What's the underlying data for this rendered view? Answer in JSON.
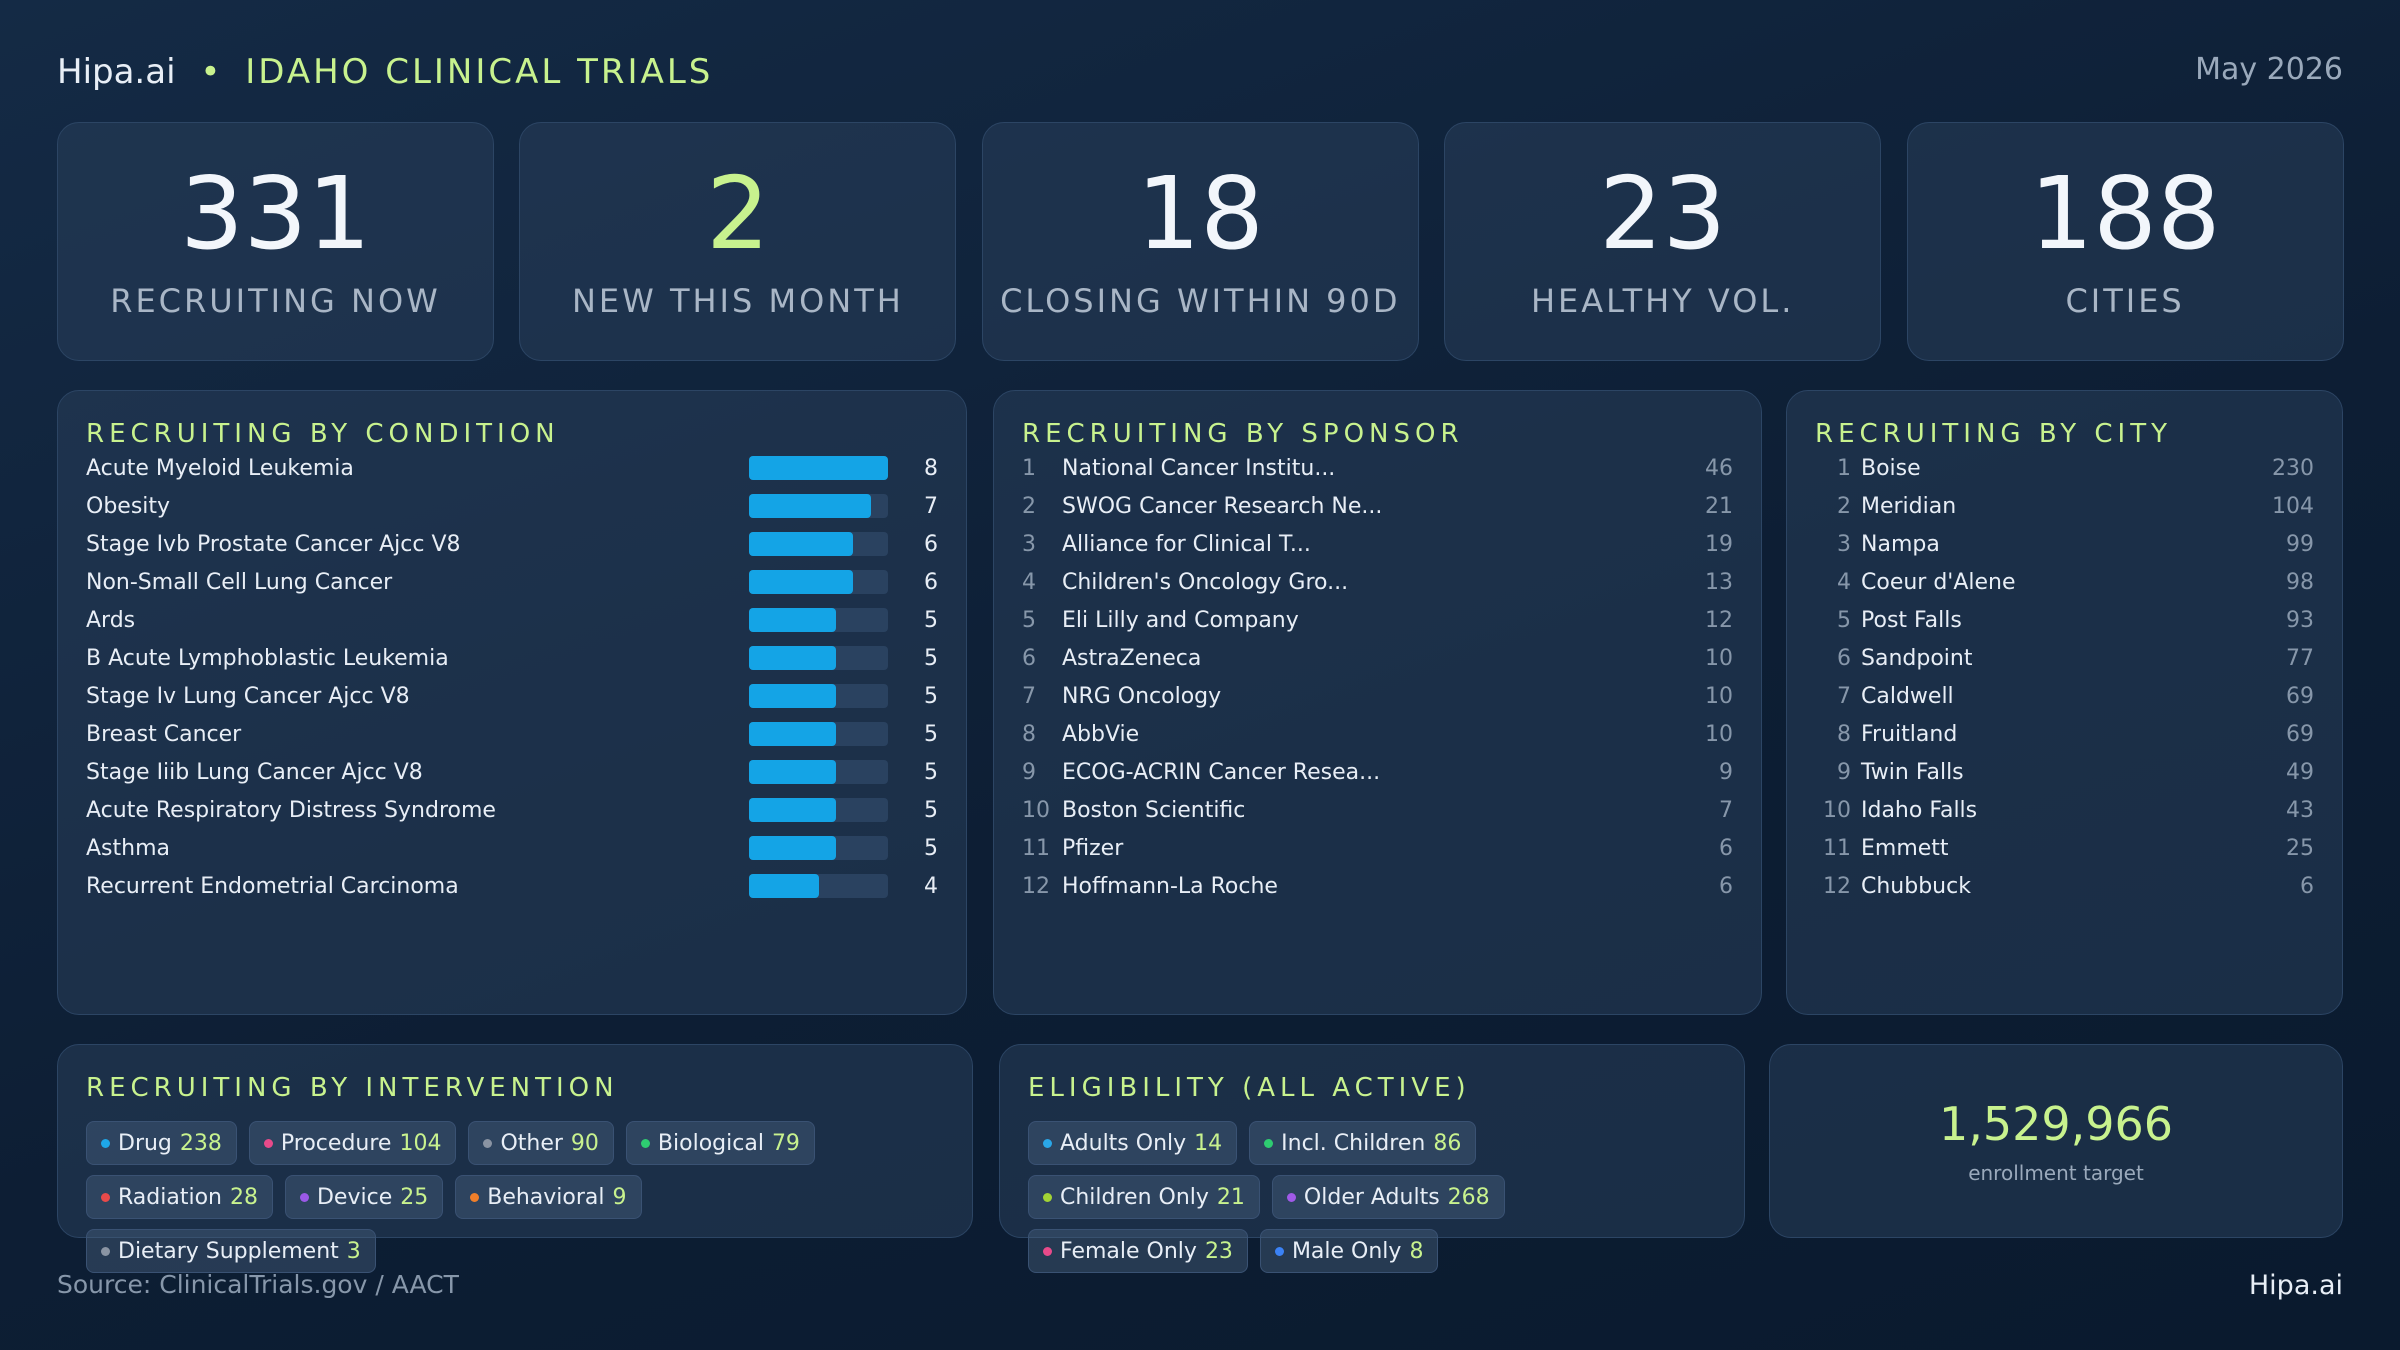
{
  "header": {
    "brand": "Hipa.ai",
    "bullet": "•",
    "title": "IDAHO CLINICAL TRIALS",
    "date": "May 2026"
  },
  "kpis": [
    {
      "value": "331",
      "label": "RECRUITING NOW"
    },
    {
      "value": "2",
      "label": "NEW THIS MONTH",
      "accent": true
    },
    {
      "value": "18",
      "label": "CLOSING WITHIN 90D"
    },
    {
      "value": "23",
      "label": "HEALTHY VOL."
    },
    {
      "value": "188",
      "label": "CITIES"
    }
  ],
  "conditions": {
    "title": "RECRUITING BY CONDITION",
    "bar_color": "#14a4e6",
    "rows": [
      {
        "name": "Acute Myeloid Leukemia",
        "value": 8
      },
      {
        "name": "Obesity",
        "value": 7
      },
      {
        "name": "Stage Ivb Prostate Cancer Ajcc V8",
        "value": 6
      },
      {
        "name": "Non-Small Cell Lung Cancer",
        "value": 6
      },
      {
        "name": "Ards",
        "value": 5
      },
      {
        "name": "B Acute Lymphoblastic Leukemia",
        "value": 5
      },
      {
        "name": "Stage Iv Lung Cancer Ajcc V8",
        "value": 5
      },
      {
        "name": "Breast Cancer",
        "value": 5
      },
      {
        "name": "Stage Iiib Lung Cancer Ajcc V8",
        "value": 5
      },
      {
        "name": "Acute Respiratory Distress Syndrome",
        "value": 5
      },
      {
        "name": "Asthma",
        "value": 5
      },
      {
        "name": "Recurrent Endometrial Carcinoma",
        "value": 4
      }
    ]
  },
  "sponsors": {
    "title": "RECRUITING BY SPONSOR",
    "rows": [
      {
        "rank": 1,
        "name": "National Cancer Institu...",
        "value": 46
      },
      {
        "rank": 2,
        "name": "SWOG Cancer Research Ne...",
        "value": 21
      },
      {
        "rank": 3,
        "name": "Alliance for Clinical T...",
        "value": 19
      },
      {
        "rank": 4,
        "name": "Children's Oncology Gro...",
        "value": 13
      },
      {
        "rank": 5,
        "name": "Eli Lilly and Company",
        "value": 12
      },
      {
        "rank": 6,
        "name": "AstraZeneca",
        "value": 10
      },
      {
        "rank": 7,
        "name": "NRG Oncology",
        "value": 10
      },
      {
        "rank": 8,
        "name": "AbbVie",
        "value": 10
      },
      {
        "rank": 9,
        "name": "ECOG-ACRIN Cancer Resea...",
        "value": 9
      },
      {
        "rank": 10,
        "name": "Boston Scientific",
        "value": 7
      },
      {
        "rank": 11,
        "name": "Pfizer",
        "value": 6
      },
      {
        "rank": 12,
        "name": "Hoffmann-La Roche",
        "value": 6
      }
    ]
  },
  "cities": {
    "title": "RECRUITING BY CITY",
    "rows": [
      {
        "rank": 1,
        "name": "Boise",
        "value": 230
      },
      {
        "rank": 2,
        "name": "Meridian",
        "value": 104
      },
      {
        "rank": 3,
        "name": "Nampa",
        "value": 99
      },
      {
        "rank": 4,
        "name": "Coeur d'Alene",
        "value": 98
      },
      {
        "rank": 5,
        "name": "Post Falls",
        "value": 93
      },
      {
        "rank": 6,
        "name": "Sandpoint",
        "value": 77
      },
      {
        "rank": 7,
        "name": "Caldwell",
        "value": 69
      },
      {
        "rank": 8,
        "name": "Fruitland",
        "value": 69
      },
      {
        "rank": 9,
        "name": "Twin Falls",
        "value": 49
      },
      {
        "rank": 10,
        "name": "Idaho Falls",
        "value": 43
      },
      {
        "rank": 11,
        "name": "Emmett",
        "value": 25
      },
      {
        "rank": 12,
        "name": "Chubbuck",
        "value": 6
      }
    ]
  },
  "interventions": {
    "title": "RECRUITING BY INTERVENTION",
    "chips": [
      {
        "name": "Drug",
        "value": 238,
        "color": "#1ea7e8"
      },
      {
        "name": "Procedure",
        "value": 104,
        "color": "#e84a8a"
      },
      {
        "name": "Other",
        "value": 90,
        "color": "#8a94a3"
      },
      {
        "name": "Biological",
        "value": 79,
        "color": "#2ecc71"
      },
      {
        "name": "Radiation",
        "value": 28,
        "color": "#e84a4a"
      },
      {
        "name": "Device",
        "value": 25,
        "color": "#9b59e8"
      },
      {
        "name": "Behavioral",
        "value": 9,
        "color": "#f07f2a"
      },
      {
        "name": "Dietary Supplement",
        "value": 3,
        "color": "#8a94a3"
      }
    ]
  },
  "eligibility": {
    "title": "ELIGIBILITY (ALL ACTIVE)",
    "chips": [
      {
        "name": "Adults Only",
        "value": 14,
        "color": "#2aa7e8"
      },
      {
        "name": "Incl. Children",
        "value": 86,
        "color": "#2ecc71"
      },
      {
        "name": "Children Only",
        "value": 21,
        "color": "#a3d435"
      },
      {
        "name": "Older Adults",
        "value": 268,
        "color": "#a05ae8"
      },
      {
        "name": "Female Only",
        "value": 23,
        "color": "#e84a8a"
      },
      {
        "name": "Male Only",
        "value": 8,
        "color": "#3b82f6"
      }
    ]
  },
  "enrollment": {
    "value": "1,529,966",
    "label": "enrollment target"
  },
  "footer": {
    "source": "Source: ClinicalTrials.gov / AACT",
    "brand": "Hipa.ai"
  }
}
